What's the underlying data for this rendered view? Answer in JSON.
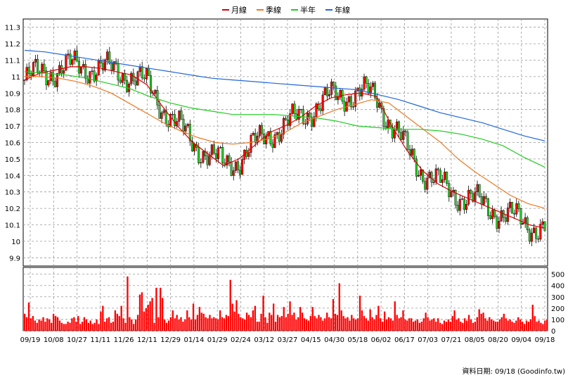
{
  "legend": [
    {
      "label": "月線",
      "color": "#dd0000"
    },
    {
      "label": "季線",
      "color": "#ee7722"
    },
    {
      "label": "半年",
      "color": "#22cc22"
    },
    {
      "label": "年線",
      "color": "#2266dd"
    }
  ],
  "footer": "資料日期: 09/18 (Goodinfo.tw)",
  "chart_data": [
    {
      "type": "line",
      "title": "",
      "x_labels": [
        "09/19",
        "10/08",
        "10/27",
        "11/11",
        "11/26",
        "12/11",
        "12/29",
        "01/14",
        "01/29",
        "02/24",
        "03/12",
        "03/27",
        "04/15",
        "04/30",
        "05/18",
        "06/02",
        "06/17",
        "07/03",
        "07/21",
        "08/05",
        "08/20",
        "09/04",
        "09/18"
      ],
      "y_ticks": [
        "11.3",
        "11.2",
        "11.1",
        "11",
        "10.9",
        "10.8",
        "10.7",
        "10.6",
        "10.5",
        "10.4",
        "10.3",
        "10.2",
        "10.1",
        "10",
        "9.9"
      ],
      "ylim": [
        9.85,
        11.35
      ],
      "grid": true,
      "legend_position": "top",
      "series": [
        {
          "name": "月線",
          "color": "#dd0000",
          "values": [
            10.98,
            11.02,
            11.04,
            11.06,
            11.06,
            11.05,
            11.03,
            11.01,
            10.95,
            10.82,
            10.7,
            10.6,
            10.53,
            10.46,
            10.5,
            10.58,
            10.66,
            10.7,
            10.75,
            10.82,
            10.87,
            10.89,
            10.9,
            10.88,
            10.7,
            10.55,
            10.43,
            10.35,
            10.3,
            10.26,
            10.22,
            10.18,
            10.14,
            10.1,
            10.08
          ]
        },
        {
          "name": "季線",
          "color": "#ee7722",
          "values": [
            11.0,
            11.0,
            10.99,
            10.97,
            10.94,
            10.9,
            10.84,
            10.78,
            10.72,
            10.67,
            10.63,
            10.6,
            10.59,
            10.6,
            10.62,
            10.66,
            10.72,
            10.76,
            10.8,
            10.83,
            10.86,
            10.84,
            10.76,
            10.68,
            10.6,
            10.5,
            10.42,
            10.35,
            10.28,
            10.23,
            10.2
          ]
        },
        {
          "name": "半年",
          "color": "#22cc22",
          "values": [
            11.03,
            11.02,
            11.01,
            10.99,
            10.96,
            10.93,
            10.88,
            10.84,
            10.81,
            10.79,
            10.77,
            10.77,
            10.77,
            10.76,
            10.75,
            10.73,
            10.7,
            10.69,
            10.68,
            10.68,
            10.67,
            10.65,
            10.62,
            10.58,
            10.51,
            10.45
          ]
        },
        {
          "name": "年線",
          "color": "#2266dd",
          "values": [
            11.16,
            11.15,
            11.13,
            11.11,
            11.09,
            11.07,
            11.05,
            11.03,
            11.01,
            10.99,
            10.98,
            10.97,
            10.96,
            10.95,
            10.94,
            10.93,
            10.92,
            10.89,
            10.86,
            10.82,
            10.78,
            10.75,
            10.72,
            10.68,
            10.64,
            10.61
          ]
        }
      ]
    },
    {
      "type": "bar",
      "title": "",
      "y_ticks": [
        "500",
        "400",
        "300",
        "200",
        "100",
        "0"
      ],
      "ylim": [
        0,
        560
      ],
      "grid": true,
      "values": [
        150,
        120,
        250,
        110,
        130,
        90,
        70,
        100,
        90,
        120,
        80,
        110,
        100,
        70,
        150,
        130,
        120,
        90,
        70,
        60,
        60,
        80,
        70,
        110,
        120,
        80,
        130,
        60,
        80,
        120,
        100,
        70,
        90,
        60,
        70,
        100,
        60,
        170,
        220,
        80,
        110,
        120,
        70,
        80,
        180,
        150,
        130,
        220,
        110,
        70,
        480,
        120,
        100,
        60,
        100,
        140,
        320,
        340,
        170,
        200,
        230,
        260,
        290,
        70,
        380,
        120,
        380,
        290,
        100,
        70,
        90,
        120,
        180,
        110,
        140,
        100,
        120,
        80,
        100,
        180,
        120,
        100,
        240,
        100,
        140,
        210,
        160,
        150,
        120,
        110,
        140,
        110,
        120,
        110,
        100,
        180,
        120,
        110,
        140,
        130,
        450,
        240,
        170,
        270,
        150,
        120,
        110,
        100,
        160,
        140,
        120,
        180,
        220,
        80,
        80,
        150,
        310,
        120,
        70,
        160,
        140,
        240,
        80,
        140,
        120,
        130,
        210,
        120,
        150,
        260,
        140,
        160,
        100,
        120,
        210,
        160,
        110,
        100,
        90,
        130,
        210,
        130,
        110,
        140,
        120,
        90,
        110,
        160,
        120,
        110,
        280,
        150,
        140,
        420,
        180,
        130,
        110,
        120,
        90,
        140,
        110,
        100,
        110,
        310,
        180,
        130,
        110,
        90,
        190,
        120,
        100,
        140,
        220,
        110,
        80,
        170,
        100,
        120,
        110,
        90,
        260,
        140,
        110,
        120,
        180,
        100,
        90,
        110,
        110,
        80,
        90,
        100,
        70,
        80,
        110,
        160,
        120,
        90,
        100,
        110,
        80,
        110,
        70,
        60,
        90,
        80,
        100,
        80,
        130,
        180,
        100,
        110,
        80,
        70,
        110,
        90,
        140,
        100,
        70,
        80,
        120,
        190,
        150,
        160,
        110,
        90,
        120,
        100,
        90,
        80,
        80,
        100,
        120,
        150,
        110,
        90,
        100,
        80,
        70,
        90,
        120,
        100,
        80,
        60,
        90,
        80,
        100,
        230,
        130,
        80,
        90,
        70,
        60,
        90,
        100
      ]
    }
  ]
}
